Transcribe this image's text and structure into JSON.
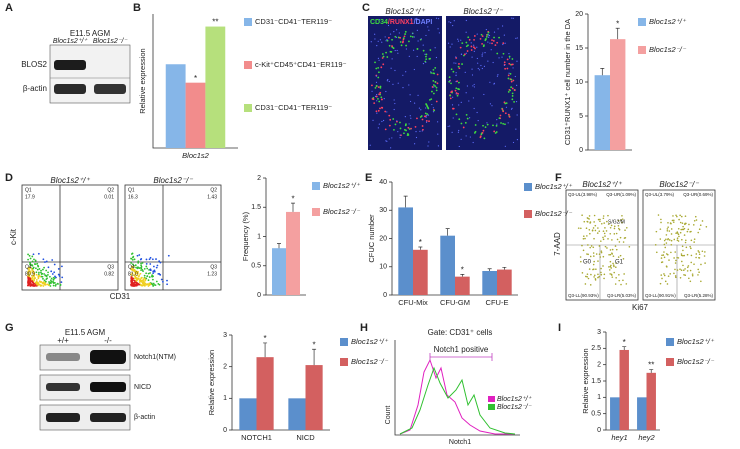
{
  "figure": {
    "panel_labels": [
      "A",
      "B",
      "C",
      "D",
      "E",
      "F",
      "G",
      "H",
      "I"
    ],
    "a": {
      "title": "E11.5 AGM",
      "genotypes": [
        "Bloc1s2⁺/⁺",
        "Bloc1s2⁻/⁻"
      ],
      "rows": [
        "BLOS2",
        "β-actin"
      ]
    },
    "c": {
      "stain": [
        "CD34",
        "/RUNX1",
        "/DAPI"
      ],
      "genotypes": [
        "Bloc1s2⁺/⁺",
        "Bloc1s2⁻/⁻"
      ]
    },
    "d": {
      "genotypes": [
        "Bloc1s2⁺/⁺",
        "Bloc1s2⁻/⁻"
      ],
      "ylabel": "c-Kit",
      "xlabel": "CD31",
      "quadrants": [
        [
          "Q1",
          "17.9",
          "Q2",
          "0.01",
          "Q4",
          "80.9",
          "Q3",
          "0.82"
        ],
        [
          "Q1",
          "16.3",
          "Q2",
          "1.43",
          "Q4",
          "81.0",
          "Q3",
          "1.23"
        ]
      ]
    },
    "f": {
      "genotypes": [
        "Bloc1s2⁺/⁺",
        "Bloc1s2⁻/⁻"
      ],
      "ylabel": "7-AAD",
      "xlabel": "Ki67",
      "phases": [
        "G0",
        "G1",
        "S/G2/M"
      ],
      "quadrants": [
        [
          "Q3-UL(3.98%)",
          "Q3-UR(1.09%)",
          "Q3-LL(90.93%)",
          "Q3-LR(5.03%)"
        ],
        [
          "Q3-UL(3.79%)",
          "Q3-UR(0.69%)",
          "Q3-LL(90.91%)",
          "Q3-LR(5.28%)"
        ]
      ]
    },
    "g": {
      "title": "E11.5 AGM",
      "genotypes": [
        "+/+",
        "-/-"
      ],
      "rows": [
        "Notch1(NTM)",
        "NICD",
        "β-actin"
      ]
    },
    "h": {
      "title": "Gate: CD31⁺ cells",
      "gate": "Notch1 positive",
      "ylabel": "Count",
      "xlabel": "Notch1",
      "legend": [
        "Bloc1s2⁺/⁺",
        "Bloc1s2⁻/⁻"
      ]
    }
  },
  "chart_data": [
    {
      "type": "bar",
      "ylabel": "Relative expression",
      "categories": [
        "Bloc1s2"
      ],
      "ylim": [
        0,
        1.6
      ],
      "series": [
        {
          "name": "CD31⁻CD41⁻TER119⁻",
          "color": "#86b6e8",
          "values": [
            1.0
          ]
        },
        {
          "name": "c-Kit⁺CD45⁺CD41⁻ER119⁻",
          "color": "#f28c8c",
          "values": [
            0.78
          ],
          "significance": [
            "*"
          ]
        },
        {
          "name": "CD31⁻CD41⁻TER119⁻",
          "color": "#b6e07c",
          "values": [
            1.45
          ],
          "significance": [
            "**"
          ]
        }
      ]
    },
    {
      "type": "bar",
      "ylabel": "CD31⁺RUNX1⁺ cell number in the DA",
      "categories": [
        null
      ],
      "ylim": [
        0,
        20
      ],
      "yticks": [
        0,
        5,
        10,
        15,
        20
      ],
      "series": [
        {
          "name": "Bloc1s2⁺/⁺",
          "color": "#86b6e8",
          "values": [
            11
          ],
          "errors": [
            1.0
          ]
        },
        {
          "name": "Bloc1s2⁻/⁻",
          "color": "#f4a0a0",
          "values": [
            16.3
          ],
          "errors": [
            1.6
          ],
          "significance": [
            "*"
          ]
        }
      ]
    },
    {
      "type": "bar",
      "ylabel": "Frequency (%)",
      "categories": [
        null
      ],
      "ylim": [
        0,
        2
      ],
      "yticks": [
        0,
        0.5,
        1,
        1.5,
        2
      ],
      "series": [
        {
          "name": "Bloc1s2⁺/⁺",
          "color": "#86b6e8",
          "values": [
            0.8
          ],
          "errors": [
            0.08
          ]
        },
        {
          "name": "Bloc1s2⁻/⁻",
          "color": "#f4a0a0",
          "values": [
            1.42
          ],
          "errors": [
            0.15
          ],
          "significance": [
            "*"
          ]
        }
      ]
    },
    {
      "type": "bar",
      "ylabel": "CFUC number",
      "categories": [
        "CFU-Mix",
        "CFU-GM",
        "CFU-E"
      ],
      "ylim": [
        0,
        40
      ],
      "yticks": [
        0,
        10,
        20,
        30,
        40
      ],
      "series": [
        {
          "name": "Bloc1s2⁺/⁺",
          "color": "#5b8fcc",
          "values": [
            31,
            21,
            8.5
          ],
          "errors": [
            4,
            2.5,
            0.8
          ]
        },
        {
          "name": "Bloc1s2⁻/⁻",
          "color": "#d36060",
          "values": [
            16,
            6.5,
            9
          ],
          "errors": [
            1,
            0.8,
            0.8
          ],
          "significance": [
            "*",
            "*",
            null
          ]
        }
      ]
    },
    {
      "type": "bar",
      "ylabel": "Relative expression",
      "categories": [
        "NOTCH1",
        "NICD"
      ],
      "ylim": [
        0,
        3
      ],
      "yticks": [
        0,
        1,
        2,
        3
      ],
      "series": [
        {
          "name": "Bloc1s2⁺/⁺",
          "color": "#5b8fcc",
          "values": [
            1,
            1
          ]
        },
        {
          "name": "Bloc1s2⁻/⁻",
          "color": "#d36060",
          "values": [
            2.3,
            2.05
          ],
          "errors": [
            0.45,
            0.5
          ],
          "significance": [
            "*",
            "*"
          ]
        }
      ]
    },
    {
      "type": "bar",
      "ylabel": "Relative expression",
      "categories": [
        "hey1",
        "hey2"
      ],
      "ylim": [
        0,
        3
      ],
      "yticks": [
        0,
        0.5,
        1,
        1.5,
        2,
        2.5,
        3
      ],
      "series": [
        {
          "name": "Bloc1s2⁺/⁺",
          "color": "#5b8fcc",
          "values": [
            1,
            1
          ]
        },
        {
          "name": "Bloc1s2⁻/⁻",
          "color": "#d36060",
          "values": [
            2.45,
            1.75
          ],
          "errors": [
            0.1,
            0.1
          ],
          "significance": [
            "*",
            "**"
          ]
        }
      ]
    }
  ]
}
